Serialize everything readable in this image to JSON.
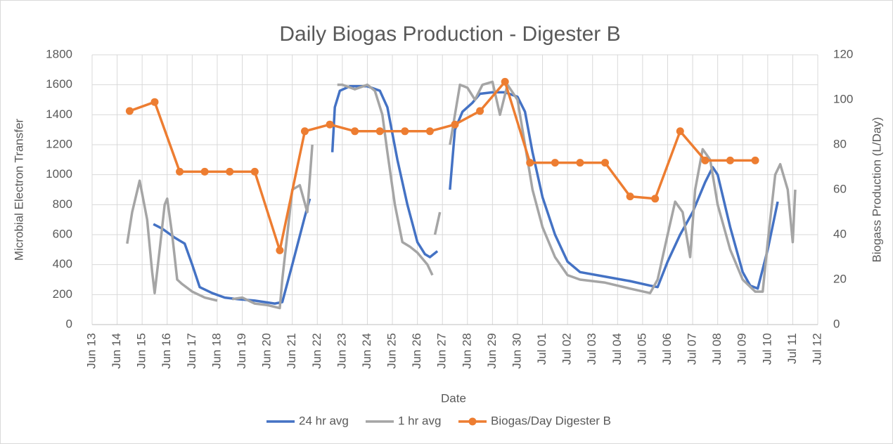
{
  "chart_data": {
    "type": "line",
    "title": "Daily Biogas Production - Digester B",
    "x_label": "Date",
    "y_label": "Microbial  Electron Transfer",
    "y2_label": "Biogass Production (L/Day)",
    "xlim": [
      0,
      29
    ],
    "xticks": [
      {
        "value": 0,
        "label": "Jun 13"
      },
      {
        "value": 1,
        "label": "Jun 14"
      },
      {
        "value": 2,
        "label": "Jun 15"
      },
      {
        "value": 3,
        "label": "Jun 16"
      },
      {
        "value": 4,
        "label": "Jun 17"
      },
      {
        "value": 5,
        "label": "Jun 18"
      },
      {
        "value": 6,
        "label": "Jun 19"
      },
      {
        "value": 7,
        "label": "Jun 20"
      },
      {
        "value": 8,
        "label": "Jun 21"
      },
      {
        "value": 9,
        "label": "Jun 22"
      },
      {
        "value": 10,
        "label": "Jun 23"
      },
      {
        "value": 11,
        "label": "Jun 24"
      },
      {
        "value": 12,
        "label": "Jun 25"
      },
      {
        "value": 13,
        "label": "Jun 26"
      },
      {
        "value": 14,
        "label": "Jun 27"
      },
      {
        "value": 15,
        "label": "Jun 28"
      },
      {
        "value": 16,
        "label": "Jun 29"
      },
      {
        "value": 17,
        "label": "Jun 30"
      },
      {
        "value": 18,
        "label": "Jul 01"
      },
      {
        "value": 19,
        "label": "Jul 02"
      },
      {
        "value": 20,
        "label": "Jul 03"
      },
      {
        "value": 21,
        "label": "Jul 04"
      },
      {
        "value": 22,
        "label": "Jul 05"
      },
      {
        "value": 23,
        "label": "Jul 06"
      },
      {
        "value": 24,
        "label": "Jul 07"
      },
      {
        "value": 25,
        "label": "Jul 08"
      },
      {
        "value": 26,
        "label": "Jul 09"
      },
      {
        "value": 27,
        "label": "Jul 10"
      },
      {
        "value": 28,
        "label": "Jul 11"
      },
      {
        "value": 29,
        "label": "Jul 12"
      }
    ],
    "ylim": [
      0,
      1800
    ],
    "yticks": [
      0,
      200,
      400,
      600,
      800,
      1000,
      1200,
      1400,
      1600,
      1800
    ],
    "y2lim": [
      0,
      120
    ],
    "y2ticks": [
      0,
      20,
      40,
      60,
      80,
      100,
      120
    ],
    "grid": true,
    "legend": "bottom",
    "series": [
      {
        "name": "24 hr avg",
        "color": "#4472c4",
        "markers": false,
        "x": [
          2.45,
          2.8,
          3.3,
          3.7,
          4.0,
          4.3,
          4.8,
          5.3,
          5.8,
          6.5,
          7.3,
          7.6,
          8.0,
          8.5,
          8.7,
          null,
          9.6,
          9.7,
          9.9,
          10.3,
          11.0,
          11.5,
          11.8,
          12.2,
          12.6,
          13.0,
          13.3,
          13.5,
          13.8,
          null,
          14.3,
          14.5,
          14.8,
          15.2,
          15.5,
          16.0,
          16.5,
          17.0,
          17.3,
          17.6,
          18.0,
          18.5,
          19.0,
          19.5,
          20.5,
          21.5,
          22.3,
          22.6,
          23.0,
          23.5,
          24.0,
          24.5,
          24.8,
          25.0,
          25.5,
          26.0,
          26.3,
          26.6,
          27.0,
          27.4
        ],
        "values": [
          670,
          640,
          580,
          540,
          400,
          250,
          210,
          180,
          170,
          160,
          140,
          150,
          400,
          720,
          840,
          null,
          1150,
          1450,
          1560,
          1590,
          1590,
          1560,
          1450,
          1100,
          800,
          550,
          470,
          450,
          490,
          null,
          900,
          1300,
          1420,
          1480,
          1540,
          1550,
          1550,
          1520,
          1420,
          1150,
          850,
          600,
          420,
          350,
          320,
          290,
          260,
          250,
          420,
          600,
          750,
          950,
          1050,
          1000,
          650,
          350,
          260,
          240,
          500,
          820
        ]
      },
      {
        "name": "1 hr avg",
        "color": "#a5a5a5",
        "markers": false,
        "x": [
          1.4,
          1.6,
          1.9,
          2.2,
          2.4,
          2.5,
          2.7,
          2.9,
          3.0,
          3.2,
          3.4,
          3.6,
          4.0,
          4.5,
          5.0,
          null,
          5.6,
          6.0,
          6.5,
          7.0,
          7.5,
          7.6,
          7.8,
          8.0,
          8.3,
          8.6,
          8.8,
          null,
          9.8,
          10.0,
          10.5,
          11.0,
          11.3,
          11.6,
          11.8,
          12.1,
          12.4,
          12.7,
          13.0,
          13.4,
          13.6,
          null,
          13.7,
          13.9,
          null,
          14.3,
          14.7,
          15.0,
          15.3,
          15.6,
          16.0,
          16.3,
          16.6,
          17.0,
          17.3,
          17.6,
          18.0,
          18.5,
          19.0,
          19.5,
          20.5,
          21.5,
          22.3,
          22.6,
          23.0,
          23.3,
          23.6,
          23.9,
          24.1,
          24.4,
          24.7,
          25.0,
          25.5,
          26.0,
          26.5,
          26.8,
          27.0,
          27.3,
          27.5,
          27.8,
          28.0,
          28.1
        ],
        "values": [
          540,
          750,
          960,
          700,
          350,
          210,
          500,
          800,
          840,
          600,
          300,
          270,
          220,
          180,
          160,
          null,
          170,
          180,
          140,
          130,
          110,
          300,
          600,
          900,
          930,
          750,
          1200,
          null,
          1600,
          1600,
          1570,
          1600,
          1560,
          1400,
          1150,
          800,
          550,
          520,
          480,
          400,
          330,
          null,
          600,
          750,
          null,
          1200,
          1600,
          1580,
          1500,
          1600,
          1620,
          1400,
          1600,
          1500,
          1200,
          900,
          650,
          450,
          330,
          300,
          280,
          240,
          210,
          300,
          600,
          820,
          750,
          450,
          900,
          1170,
          1100,
          800,
          500,
          300,
          220,
          220,
          550,
          1000,
          1070,
          900,
          550,
          900
        ]
      },
      {
        "name": "Biogas/Day Digester B",
        "color": "#ed7d31",
        "markers": true,
        "axis": "y2",
        "x": [
          1.5,
          2.5,
          3.5,
          4.5,
          5.5,
          6.5,
          7.5,
          8.5,
          9.5,
          10.5,
          11.5,
          12.5,
          13.5,
          14.5,
          15.5,
          16.5,
          17.5,
          18.5,
          19.5,
          20.5,
          21.5,
          22.5,
          23.5,
          24.5,
          25.5,
          26.5
        ],
        "values": [
          95,
          99,
          68,
          68,
          68,
          68,
          33,
          86,
          89,
          86,
          86,
          86,
          86,
          89,
          95,
          108,
          72,
          72,
          72,
          72,
          57,
          56,
          86,
          73,
          73,
          73
        ]
      }
    ]
  }
}
